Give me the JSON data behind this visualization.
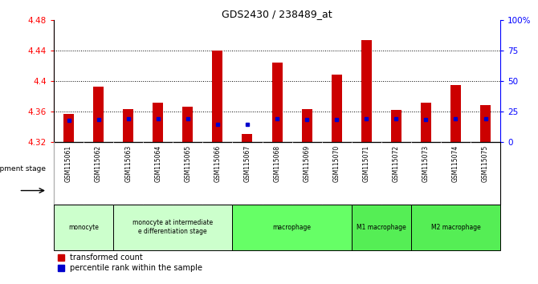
{
  "title": "GDS2430 / 238489_at",
  "samples": [
    "GSM115061",
    "GSM115062",
    "GSM115063",
    "GSM115064",
    "GSM115065",
    "GSM115066",
    "GSM115067",
    "GSM115068",
    "GSM115069",
    "GSM115070",
    "GSM115071",
    "GSM115072",
    "GSM115073",
    "GSM115074",
    "GSM115075"
  ],
  "bar_tops": [
    4.357,
    4.393,
    4.363,
    4.372,
    4.366,
    4.44,
    4.33,
    4.424,
    4.363,
    4.408,
    4.453,
    4.362,
    4.372,
    4.395,
    4.368
  ],
  "blue_dots": [
    4.348,
    4.349,
    4.35,
    4.35,
    4.35,
    4.343,
    4.343,
    4.35,
    4.349,
    4.349,
    4.35,
    4.35,
    4.349,
    4.35,
    4.35
  ],
  "bar_bottom": 4.32,
  "ylim_min": 4.32,
  "ylim_max": 4.48,
  "bar_color": "#cc0000",
  "dot_color": "#0000cc",
  "background_color": "#ffffff",
  "yticks_left": [
    4.32,
    4.36,
    4.4,
    4.44,
    4.48
  ],
  "yticks_right": [
    0,
    25,
    50,
    75,
    100
  ],
  "ytick_labels_right": [
    "0",
    "25",
    "50",
    "75",
    "100%"
  ],
  "groups_def": [
    {
      "label": "monocyte",
      "start": 0,
      "end": 1,
      "color": "#ccffcc"
    },
    {
      "label": "monocyte at intermediate\ne differentiation stage",
      "start": 2,
      "end": 5,
      "color": "#ccffcc"
    },
    {
      "label": "macrophage",
      "start": 6,
      "end": 9,
      "color": "#66ff66"
    },
    {
      "label": "M1 macrophage",
      "start": 10,
      "end": 11,
      "color": "#55ee55"
    },
    {
      "label": "M2 macrophage",
      "start": 12,
      "end": 14,
      "color": "#55ee55"
    }
  ],
  "legend_red": "transformed count",
  "legend_blue": "percentile rank within the sample"
}
